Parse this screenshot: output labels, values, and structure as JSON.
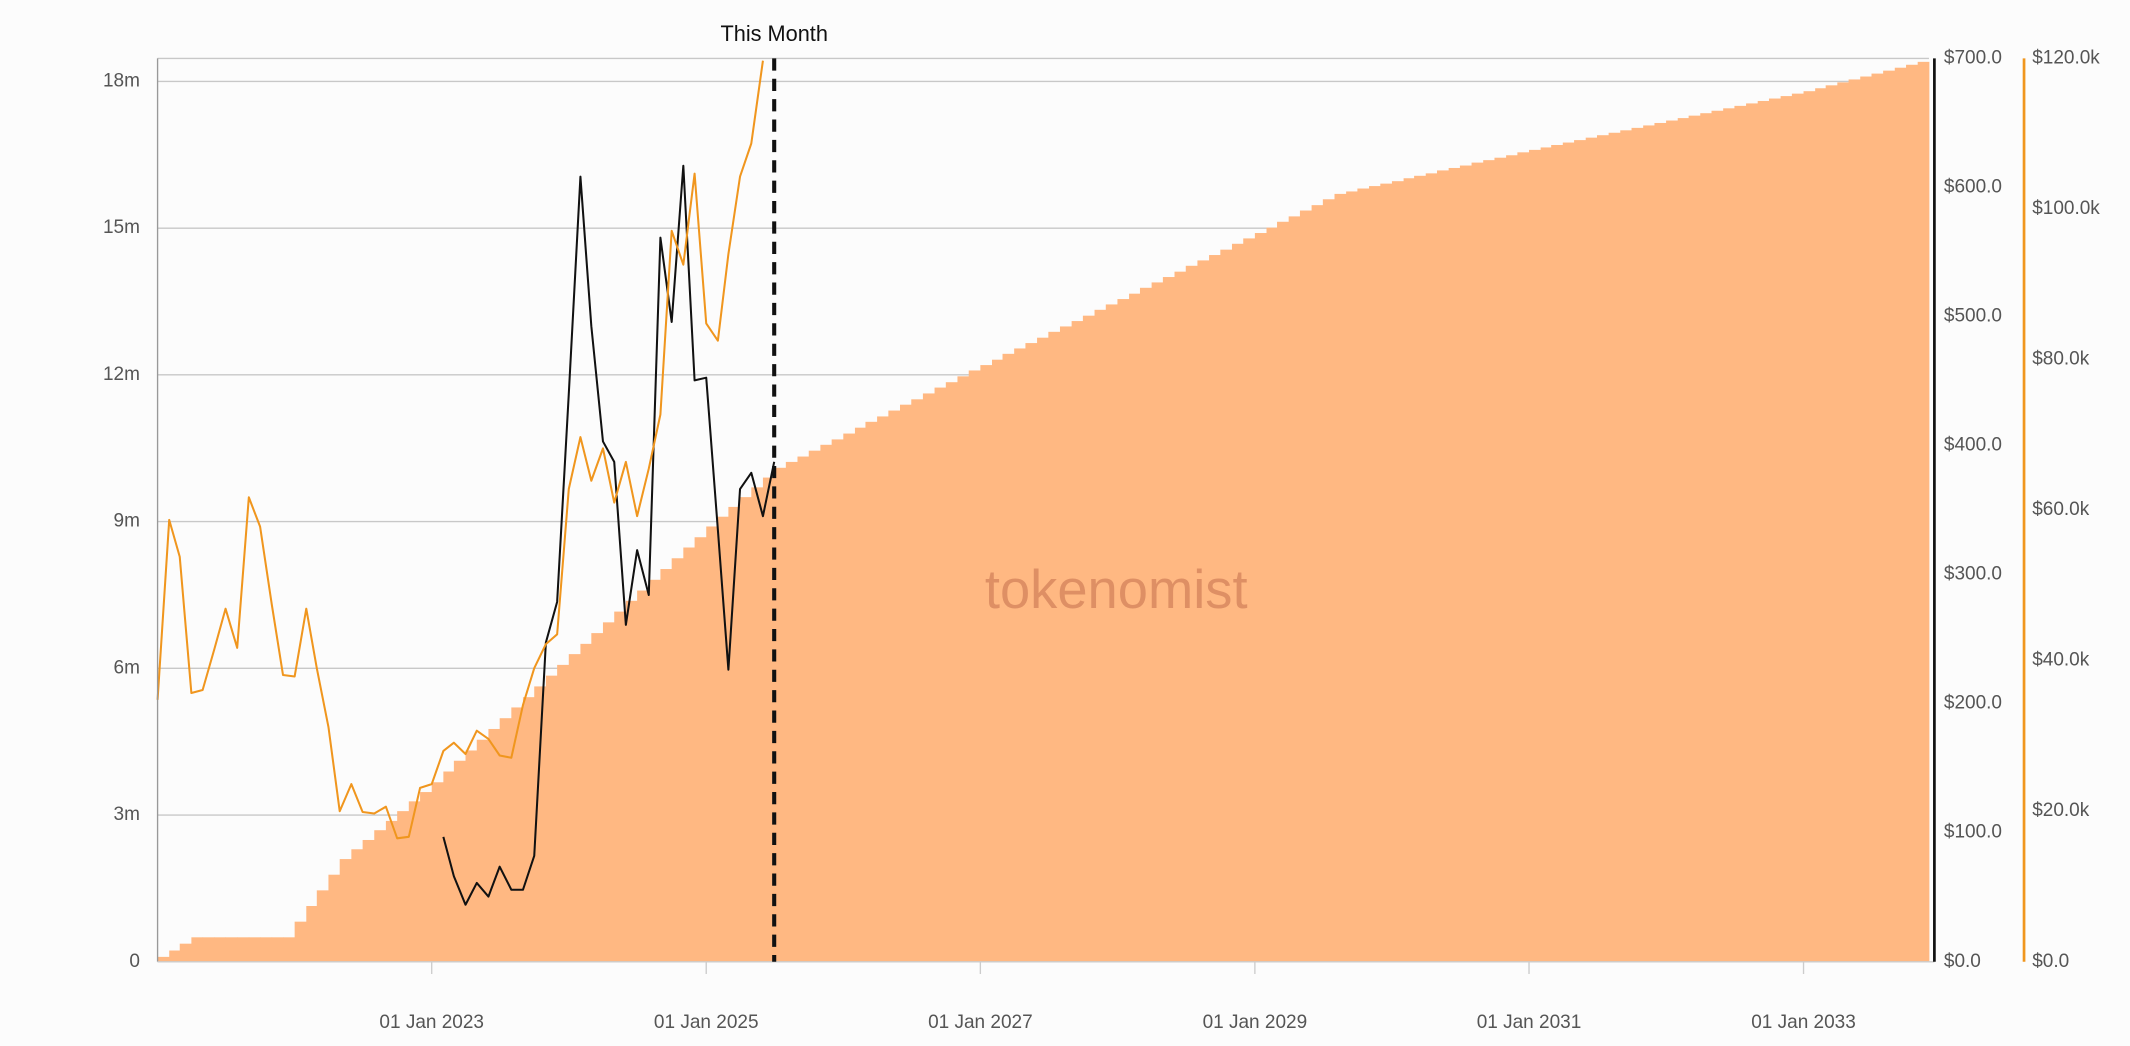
{
  "chart_data": {
    "type": "combo",
    "annotation": {
      "text": "This Month",
      "x": "2025-07-01"
    },
    "watermark": "tokenomist",
    "xlim": [
      "2021-01-01",
      "2033-12-01"
    ],
    "xticks": [
      {
        "value": "2023-01-01",
        "label": "01 Jan 2023"
      },
      {
        "value": "2025-01-01",
        "label": "01 Jan 2025"
      },
      {
        "value": "2027-01-01",
        "label": "01 Jan 2027"
      },
      {
        "value": "2029-01-01",
        "label": "01 Jan 2029"
      },
      {
        "value": "2031-01-01",
        "label": "01 Jan 2031"
      },
      {
        "value": "2033-01-01",
        "label": "01 Jan 2033"
      }
    ],
    "ylim": [
      0,
      18.47
    ],
    "yticks": [
      0,
      {
        "value": 3,
        "label": "3m"
      },
      {
        "value": 6,
        "label": "6m"
      },
      {
        "value": 9,
        "label": "9m"
      },
      {
        "value": 12,
        "label": "12m"
      },
      {
        "value": 15,
        "label": "15m"
      },
      {
        "value": 18,
        "label": "18m"
      }
    ],
    "y2lim": [
      0,
      700
    ],
    "y2ticks": [
      {
        "value": 0,
        "label": "$0.0"
      },
      {
        "value": 100,
        "label": "$100.0"
      },
      {
        "value": 200,
        "label": "$200.0"
      },
      {
        "value": 300,
        "label": "$300.0"
      },
      {
        "value": 400,
        "label": "$400.0"
      },
      {
        "value": 500,
        "label": "$500.0"
      },
      {
        "value": 600,
        "label": "$600.0"
      },
      {
        "value": 700,
        "label": "$700.0"
      }
    ],
    "y3lim": [
      0,
      120
    ],
    "y3ticks": [
      {
        "value": 0,
        "label": "$0.0"
      },
      {
        "value": 20,
        "label": "$20.0k"
      },
      {
        "value": 40,
        "label": "$40.0k"
      },
      {
        "value": 60,
        "label": "$60.0k"
      },
      {
        "value": 80,
        "label": "$80.0k"
      },
      {
        "value": 100,
        "label": "$100.0k"
      },
      {
        "value": 120,
        "label": "$120.0k"
      }
    ],
    "grid": true,
    "x": [
      "2021-01-01",
      "2021-02-01",
      "2021-03-01",
      "2021-04-01",
      "2021-05-01",
      "2021-06-01",
      "2021-07-01",
      "2021-08-01",
      "2021-09-01",
      "2021-10-01",
      "2021-11-01",
      "2021-12-01",
      "2022-01-01",
      "2022-02-01",
      "2022-03-01",
      "2022-04-01",
      "2022-05-01",
      "2022-06-01",
      "2022-07-01",
      "2022-08-01",
      "2022-09-01",
      "2022-10-01",
      "2022-11-01",
      "2022-12-01",
      "2023-01-01",
      "2023-02-01",
      "2023-03-01",
      "2023-04-01",
      "2023-05-01",
      "2023-06-01",
      "2023-07-01",
      "2023-08-01",
      "2023-09-01",
      "2023-10-01",
      "2023-11-01",
      "2023-12-01",
      "2024-01-01",
      "2024-02-01",
      "2024-03-01",
      "2024-04-01",
      "2024-05-01",
      "2024-06-01",
      "2024-07-01",
      "2024-08-01",
      "2024-09-01",
      "2024-10-01",
      "2024-11-01",
      "2024-12-01",
      "2025-01-01",
      "2025-02-01",
      "2025-03-01",
      "2025-04-01",
      "2025-05-01",
      "2025-06-01",
      "2025-07-01",
      "2025-08-01",
      "2025-09-01",
      "2025-10-01",
      "2025-11-01",
      "2025-12-01",
      "2026-01-01",
      "2026-02-01",
      "2026-03-01",
      "2026-04-01",
      "2026-05-01",
      "2026-06-01",
      "2026-07-01",
      "2026-08-01",
      "2026-09-01",
      "2026-10-01",
      "2026-11-01",
      "2026-12-01",
      "2027-01-01",
      "2027-02-01",
      "2027-03-01",
      "2027-04-01",
      "2027-05-01",
      "2027-06-01",
      "2027-07-01",
      "2027-08-01",
      "2027-09-01",
      "2027-10-01",
      "2027-11-01",
      "2027-12-01",
      "2028-01-01",
      "2028-02-01",
      "2028-03-01",
      "2028-04-01",
      "2028-05-01",
      "2028-06-01",
      "2028-07-01",
      "2028-08-01",
      "2028-09-01",
      "2028-10-01",
      "2028-11-01",
      "2028-12-01",
      "2029-01-01",
      "2029-02-01",
      "2029-03-01",
      "2029-04-01",
      "2029-05-01",
      "2029-06-01",
      "2029-07-01",
      "2029-08-01",
      "2029-09-01",
      "2029-10-01",
      "2029-11-01",
      "2029-12-01",
      "2030-01-01",
      "2030-02-01",
      "2030-03-01",
      "2030-04-01",
      "2030-05-01",
      "2030-06-01",
      "2030-07-01",
      "2030-08-01",
      "2030-09-01",
      "2030-10-01",
      "2030-11-01",
      "2030-12-01",
      "2031-01-01",
      "2031-02-01",
      "2031-03-01",
      "2031-04-01",
      "2031-05-01",
      "2031-06-01",
      "2031-07-01",
      "2031-08-01",
      "2031-09-01",
      "2031-10-01",
      "2031-11-01",
      "2031-12-01",
      "2032-01-01",
      "2032-02-01",
      "2032-03-01",
      "2032-04-01",
      "2032-05-01",
      "2032-06-01",
      "2032-07-01",
      "2032-08-01",
      "2032-09-01",
      "2032-10-01",
      "2032-11-01",
      "2032-12-01",
      "2033-01-01",
      "2033-02-01",
      "2033-03-01",
      "2033-04-01",
      "2033-05-01",
      "2033-06-01",
      "2033-07-01",
      "2033-08-01",
      "2033-09-01",
      "2033-10-01",
      "2033-11-01"
    ],
    "series": [
      {
        "type": "area",
        "axis": "y",
        "color": "#ffb882",
        "values": [
          0.1,
          0.23,
          0.37,
          0.5,
          0.5,
          0.5,
          0.5,
          0.5,
          0.5,
          0.5,
          0.5,
          0.5,
          0.82,
          1.14,
          1.46,
          1.78,
          2.1,
          2.3,
          2.49,
          2.69,
          2.88,
          3.08,
          3.28,
          3.47,
          3.67,
          3.89,
          4.11,
          4.32,
          4.54,
          4.76,
          4.98,
          5.2,
          5.41,
          5.63,
          5.85,
          6.07,
          6.29,
          6.5,
          6.72,
          6.94,
          7.16,
          7.38,
          7.59,
          7.81,
          8.03,
          8.25,
          8.47,
          8.68,
          8.9,
          9.1,
          9.3,
          9.5,
          9.7,
          9.9,
          10.1,
          10.22,
          10.33,
          10.45,
          10.57,
          10.68,
          10.8,
          10.92,
          11.04,
          11.15,
          11.27,
          11.39,
          11.5,
          11.62,
          11.74,
          11.85,
          11.97,
          12.09,
          12.2,
          12.31,
          12.43,
          12.54,
          12.65,
          12.76,
          12.88,
          12.99,
          13.1,
          13.21,
          13.33,
          13.44,
          13.55,
          13.66,
          13.78,
          13.89,
          14.0,
          14.11,
          14.23,
          14.34,
          14.45,
          14.56,
          14.68,
          14.79,
          14.9,
          15.01,
          15.13,
          15.24,
          15.36,
          15.47,
          15.59,
          15.7,
          15.75,
          15.81,
          15.86,
          15.91,
          15.96,
          16.02,
          16.07,
          16.12,
          16.18,
          16.23,
          16.28,
          16.34,
          16.39,
          16.44,
          16.49,
          16.55,
          16.6,
          16.65,
          16.7,
          16.75,
          16.8,
          16.85,
          16.9,
          16.95,
          17.0,
          17.05,
          17.1,
          17.15,
          17.2,
          17.25,
          17.3,
          17.35,
          17.4,
          17.45,
          17.5,
          17.55,
          17.6,
          17.65,
          17.7,
          17.75,
          17.8,
          17.86,
          17.92,
          17.98,
          18.04,
          18.1,
          18.16,
          18.22,
          18.28,
          18.34,
          18.4
        ]
      },
      {
        "type": "line",
        "axis": "y2",
        "color": "#111111",
        "values": [
          null,
          null,
          null,
          null,
          null,
          null,
          null,
          null,
          null,
          null,
          null,
          null,
          null,
          null,
          null,
          null,
          null,
          null,
          null,
          null,
          null,
          null,
          null,
          null,
          null,
          96.8,
          66.3,
          44.2,
          61.1,
          50.5,
          73.7,
          55.8,
          55.8,
          82.1,
          247.4,
          278.9,
          440.0,
          608.4,
          492.6,
          403.2,
          387.4,
          261.1,
          319.0,
          284.2,
          561.1,
          495.8,
          616.8,
          450.5,
          452.6,
          334.7,
          226.3,
          366.3,
          378.9,
          345.3,
          387.4,
          null,
          null,
          null,
          null,
          null,
          null,
          null,
          null,
          null,
          null,
          null,
          null,
          null,
          null,
          null,
          null,
          null,
          null,
          null,
          null,
          null,
          null,
          null,
          null,
          null,
          null,
          null,
          null,
          null,
          null,
          null,
          null,
          null,
          null,
          null,
          null,
          null,
          null,
          null,
          null,
          null,
          null,
          null,
          null,
          null,
          null,
          null,
          null,
          null,
          null,
          null,
          null,
          null,
          null,
          null,
          null,
          null,
          null,
          null,
          null,
          null,
          null,
          null,
          null,
          null,
          null,
          null,
          null,
          null,
          null,
          null,
          null,
          null,
          null,
          null,
          null,
          null,
          null,
          null,
          null,
          null,
          null,
          null,
          null,
          null,
          null,
          null,
          null,
          null,
          null,
          null,
          null,
          null,
          null,
          null,
          null,
          null,
          null,
          null,
          null
        ]
      },
      {
        "type": "line",
        "axis": "y3",
        "color": "#f0961e",
        "values": [
          34.8,
          58.7,
          53.8,
          35.7,
          36.1,
          41.5,
          46.9,
          41.7,
          61.7,
          57.8,
          47.5,
          38.1,
          37.9,
          46.9,
          39.0,
          31.2,
          20.0,
          23.6,
          19.9,
          19.7,
          20.6,
          16.4,
          16.6,
          23.1,
          23.6,
          28.0,
          29.1,
          27.6,
          30.7,
          29.6,
          27.4,
          27.1,
          34.1,
          39.0,
          42.2,
          43.5,
          62.8,
          69.7,
          63.9,
          68.2,
          61.0,
          66.4,
          59.2,
          65.5,
          72.7,
          97.1,
          92.6,
          104.7,
          84.8,
          82.5,
          94.0,
          104.3,
          108.7,
          119.7,
          null,
          null,
          null,
          null,
          null,
          null,
          null,
          null,
          null,
          null,
          null,
          null,
          null,
          null,
          null,
          null,
          null,
          null,
          null,
          null,
          null,
          null,
          null,
          null,
          null,
          null,
          null,
          null,
          null,
          null,
          null,
          null,
          null,
          null,
          null,
          null,
          null,
          null,
          null,
          null,
          null,
          null,
          null,
          null,
          null,
          null,
          null,
          null,
          null,
          null,
          null,
          null,
          null,
          null,
          null,
          null,
          null,
          null,
          null,
          null,
          null,
          null,
          null,
          null,
          null,
          null,
          null,
          null,
          null,
          null,
          null,
          null,
          null,
          null,
          null,
          null,
          null,
          null,
          null,
          null,
          null,
          null,
          null,
          null,
          null,
          null,
          null,
          null,
          null,
          null,
          null,
          null,
          null,
          null,
          null,
          null,
          null,
          null,
          null,
          null,
          null
        ]
      }
    ]
  }
}
